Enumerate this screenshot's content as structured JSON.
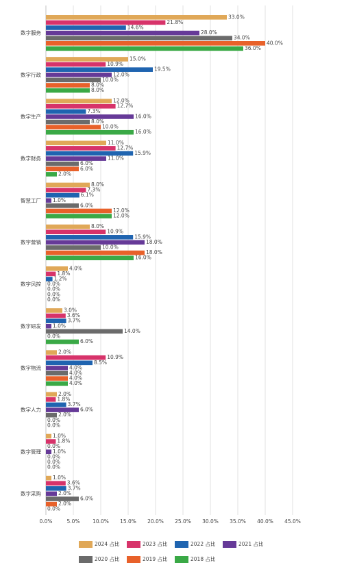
{
  "chart_data": {
    "type": "hbar",
    "categories": [
      "数字服务",
      "数字行政",
      "数字生产",
      "数字财务",
      "智慧工厂",
      "数字营销",
      "数字风控",
      "数字研发",
      "数字物流",
      "数字人力",
      "数字管理",
      "数字采购"
    ],
    "series": [
      {
        "name": "2024 占比",
        "color": "#e0a858",
        "values": [
          33.0,
          15.0,
          12.0,
          11.0,
          8.0,
          8.0,
          4.0,
          3.0,
          2.0,
          2.0,
          1.0,
          1.0
        ],
        "value_labels": [
          "33.0%",
          "15.0%",
          "12.0%",
          "11.0%",
          "8.0%",
          "8.0%",
          "4.0%",
          "3.0%",
          "2.0%",
          "2.0%",
          "1.0%",
          "1.0%"
        ]
      },
      {
        "name": "2023 占比",
        "color": "#d7336a",
        "values": [
          21.8,
          10.9,
          12.7,
          12.7,
          7.3,
          10.9,
          1.8,
          3.6,
          10.9,
          1.8,
          1.8,
          3.6
        ],
        "value_labels": [
          "21.8%",
          "10.9%",
          "12.7%",
          "12.7%",
          "7.3%",
          "10.9%",
          "1.8%",
          "3.6%",
          "10.9%",
          "1.8%",
          "1.8%",
          "3.6%"
        ]
      },
      {
        "name": "2022 占比",
        "color": "#1f64b0",
        "values": [
          14.6,
          19.5,
          7.3,
          15.9,
          6.1,
          15.9,
          1.2,
          3.7,
          8.5,
          3.7,
          0.0,
          3.7
        ],
        "value_labels": [
          "14.6%",
          "19.5%",
          "7.3%",
          "15.9%",
          "6.1%",
          "15.9%",
          "1.2%",
          "3.7%",
          "8.5%",
          "3.7%",
          "0.0%",
          "3.7%"
        ]
      },
      {
        "name": "2021 占比",
        "color": "#663a98",
        "values": [
          28.0,
          12.0,
          16.0,
          11.0,
          1.0,
          18.0,
          0.0,
          1.0,
          4.0,
          6.0,
          1.0,
          2.0
        ],
        "value_labels": [
          "28.0%",
          "12.0%",
          "16.0%",
          "11.0%",
          "1.0%",
          "18.0%",
          "0.0%",
          "1.0%",
          "4.0%",
          "6.0%",
          "1.0%",
          "2.0%"
        ]
      },
      {
        "name": "2020 占比",
        "color": "#6b6b6b",
        "values": [
          34.0,
          10.0,
          8.0,
          6.0,
          6.0,
          10.0,
          0.0,
          14.0,
          4.0,
          2.0,
          0.0,
          6.0
        ],
        "value_labels": [
          "34.0%",
          "10.0%",
          "8.0%",
          "6.0%",
          "6.0%",
          "10.0%",
          "0.0%",
          "14.0%",
          "4.0%",
          "2.0%",
          "0.0%",
          "6.0%"
        ]
      },
      {
        "name": "2019 占比",
        "color": "#e8612a",
        "values": [
          40.0,
          8.0,
          10.0,
          6.0,
          12.0,
          18.0,
          0.0,
          0.0,
          4.0,
          0.0,
          0.0,
          2.0
        ],
        "value_labels": [
          "40.0%",
          "8.0%",
          "10.0%",
          "6.0%",
          "12.0%",
          "18.0%",
          "0.0%",
          "0.0%",
          "4.0%",
          "0.0%",
          "0.0%",
          "2.0%"
        ]
      },
      {
        "name": "2018 占比",
        "color": "#3aa946",
        "values": [
          36.0,
          8.0,
          16.0,
          2.0,
          12.0,
          16.0,
          0.0,
          6.0,
          4.0,
          0.0,
          0.0,
          0.0
        ],
        "value_labels": [
          "36.0%",
          "8.0%",
          "16.0%",
          "2.0%",
          "12.0%",
          "16.0%",
          "0.0%",
          "6.0%",
          "4.0%",
          "0.0%",
          "0.0%",
          "0.0%"
        ]
      }
    ],
    "xlim": [
      0,
      45
    ],
    "xticks": [
      {
        "value": 0,
        "label": "0.0%"
      },
      {
        "value": 5,
        "label": "5.0%"
      },
      {
        "value": 10,
        "label": "10.0%"
      },
      {
        "value": 15,
        "label": "15.0%"
      },
      {
        "value": 20,
        "label": "20.0%"
      },
      {
        "value": 25,
        "label": "25.0%"
      },
      {
        "value": 30,
        "label": "30.0%"
      },
      {
        "value": 35,
        "label": "35.0%"
      },
      {
        "value": 40,
        "label": "40.0%"
      },
      {
        "value": 45,
        "label": "45.0%"
      }
    ],
    "grid": true,
    "legend": "bottom"
  }
}
